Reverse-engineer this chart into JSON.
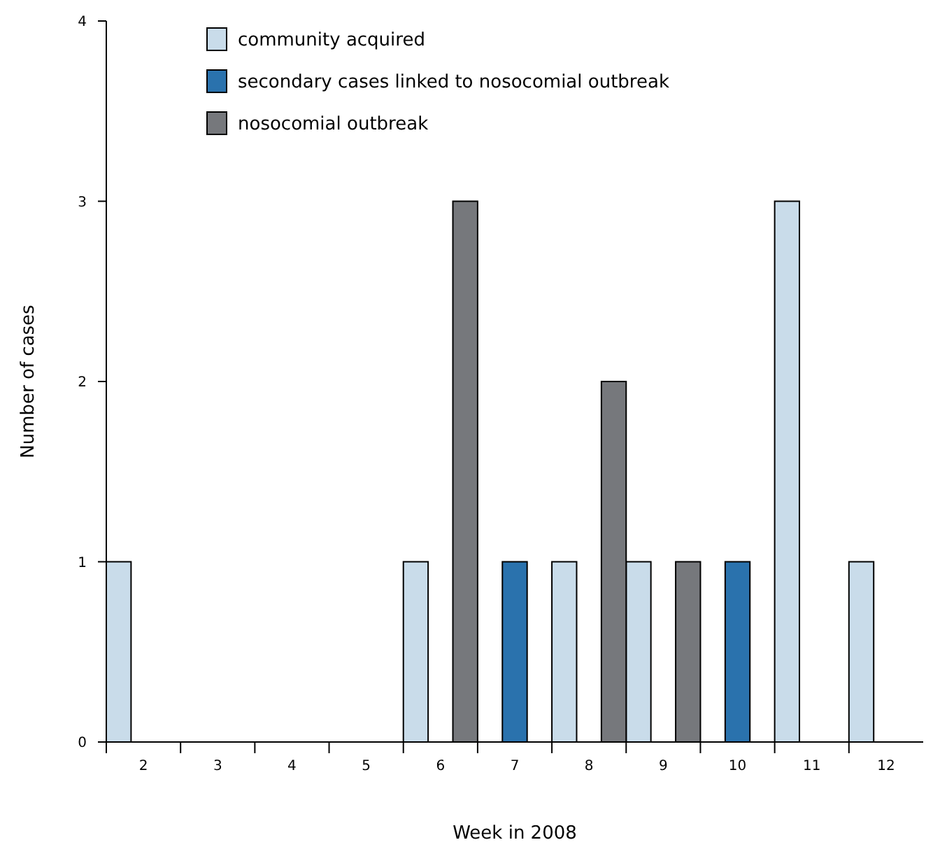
{
  "chart_data": {
    "type": "bar",
    "xlabel": "Week in 2008",
    "ylabel": "Number of cases",
    "categories": [
      "2",
      "3",
      "4",
      "5",
      "6",
      "7",
      "8",
      "9",
      "10",
      "11",
      "12"
    ],
    "series": [
      {
        "name": "community acquired",
        "color": "#c9dcea",
        "values": [
          1,
          null,
          null,
          null,
          1,
          null,
          1,
          1,
          null,
          3,
          1
        ]
      },
      {
        "name": "secondary cases linked to nosocomial outbreak",
        "color": "#2a72ad",
        "values": [
          null,
          null,
          null,
          null,
          null,
          1,
          null,
          null,
          1,
          null,
          null
        ]
      },
      {
        "name": "nosocomial outbreak",
        "color": "#76787c",
        "values": [
          null,
          null,
          null,
          null,
          3,
          null,
          2,
          1,
          null,
          null,
          null
        ]
      }
    ],
    "ylim": [
      0,
      4
    ],
    "yticks": [
      0,
      1,
      2,
      3,
      4
    ],
    "grid": false,
    "legend": "top left"
  }
}
